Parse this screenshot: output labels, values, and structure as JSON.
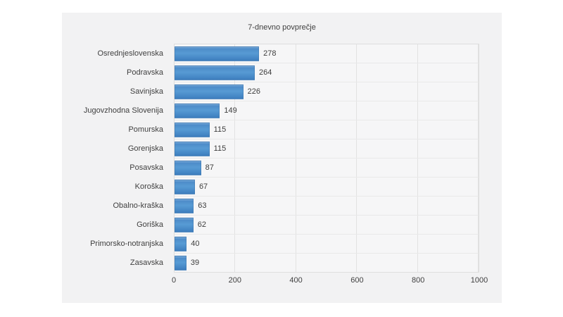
{
  "chart": {
    "title": "7-dnevno povprečje"
  },
  "chart_data": {
    "type": "bar",
    "orientation": "horizontal",
    "title": "7-dnevno povprečje",
    "categories": [
      "Osrednjeslovenska",
      "Podravska",
      "Savinjska",
      "Jugovzhodna Slovenija",
      "Pomurska",
      "Gorenjska",
      "Posavska",
      "Koroška",
      "Obalno-kraška",
      "Goriška",
      "Primorsko-notranjska",
      "Zasavska"
    ],
    "values": [
      278,
      264,
      226,
      149,
      115,
      115,
      87,
      67,
      63,
      62,
      40,
      39
    ],
    "xlabel": "",
    "ylabel": "",
    "xlim": [
      0,
      1000
    ],
    "x_ticks": [
      0,
      200,
      400,
      600,
      800,
      1000
    ],
    "grid": true,
    "legend": "none",
    "colors": {
      "bar_gradient": [
        "#8db9e2",
        "#4d8bc8",
        "#579bd4",
        "#4182c2",
        "#3c7ab8"
      ],
      "bar_border": "rgba(58,112,168,0.45)",
      "card_background": "#f2f2f3",
      "plot_background": "#f6f6f7",
      "gridline": "#e2e2e2",
      "row_separator": "#e9e9e9",
      "text": "#3f3f3f",
      "page_background": "#ffffff"
    }
  }
}
